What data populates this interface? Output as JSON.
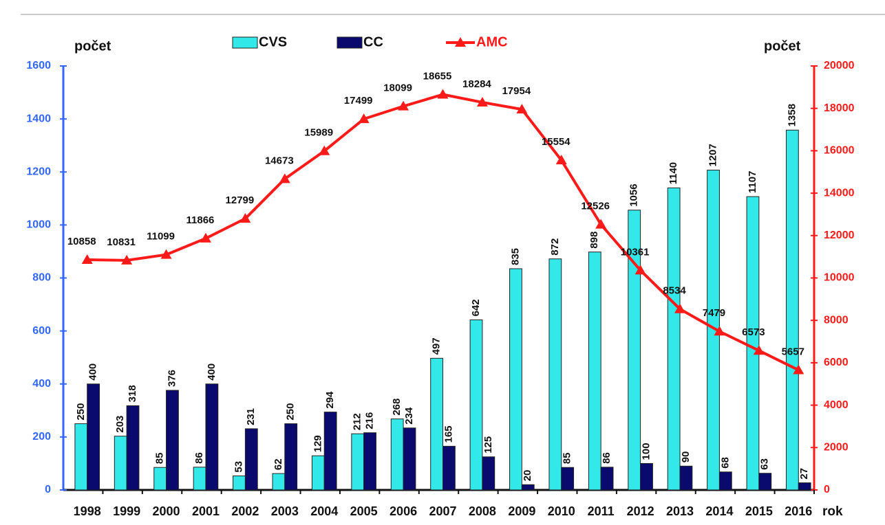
{
  "chart_data": {
    "type": "bar",
    "y_label": "počet",
    "y2_label": "počet",
    "x_label": "rok",
    "categories": [
      "1998",
      "1999",
      "2000",
      "2001",
      "2002",
      "2003",
      "2004",
      "2005",
      "2006",
      "2007",
      "2008",
      "2009",
      "2010",
      "2011",
      "2012",
      "2013",
      "2014",
      "2015",
      "2016"
    ],
    "series": [
      {
        "name": "CVS",
        "type": "bar",
        "color": "#33e8e8",
        "values": [
          250,
          203,
          85,
          86,
          53,
          62,
          129,
          212,
          268,
          497,
          642,
          835,
          872,
          898,
          1056,
          1140,
          1207,
          1107,
          1358
        ]
      },
      {
        "name": "CC",
        "type": "bar",
        "color": "#0a0a6e",
        "values": [
          400,
          318,
          376,
          400,
          231,
          250,
          294,
          216,
          234,
          165,
          125,
          20,
          85,
          86,
          100,
          90,
          68,
          63,
          27
        ]
      },
      {
        "name": "AMC",
        "type": "line",
        "axis": "y2",
        "color": "#ff1a1a",
        "values": [
          10858,
          10831,
          11099,
          11866,
          12799,
          14673,
          15989,
          17499,
          18099,
          18655,
          18284,
          17954,
          15554,
          12526,
          10361,
          8534,
          7479,
          6573,
          5657
        ]
      }
    ],
    "ylim": [
      0,
      1600
    ],
    "yticks": [
      0,
      200,
      400,
      600,
      800,
      1000,
      1200,
      1400,
      1600
    ],
    "y2lim": [
      0,
      20000
    ],
    "y2ticks": [
      0,
      2000,
      4000,
      6000,
      8000,
      10000,
      12000,
      14000,
      16000,
      18000,
      20000
    ],
    "legend": "top"
  }
}
